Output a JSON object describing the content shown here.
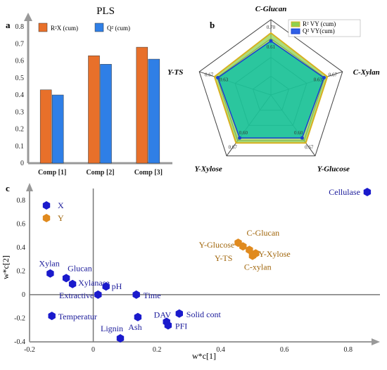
{
  "panels": {
    "a": {
      "label": "a"
    },
    "b": {
      "label": "b"
    },
    "c": {
      "label": "c"
    }
  },
  "chart_data": [
    {
      "type": "bar",
      "title": "PLS",
      "categories": [
        "Comp [1]",
        "Comp [2]",
        "Comp [3]"
      ],
      "series": [
        {
          "name": "R²X (cum)",
          "color": "#e8702a",
          "values": [
            0.43,
            0.63,
            0.68
          ]
        },
        {
          "name": "Q² (cum)",
          "color": "#2f7fe6",
          "values": [
            0.4,
            0.58,
            0.61
          ]
        }
      ],
      "ylim": [
        0,
        0.8
      ],
      "yticks": [
        "0",
        "0.1",
        "0.2",
        "0.3",
        "0.4",
        "0.5",
        "0.6",
        "0.7",
        "0.8"
      ],
      "legend": "top"
    },
    {
      "type": "radar",
      "axes": [
        "C-Glucan",
        "C-Xylan",
        "Y-Glucose",
        "Y-Xylose",
        "Y-TS"
      ],
      "rings": 4,
      "series": [
        {
          "name": "R² VY (cum)",
          "color": "#8fd14f",
          "values": [
            0.7,
            0.67,
            0.67,
            0.67,
            0.67
          ],
          "labels": [
            "0.70",
            "0.67",
            "0.67",
            "0.67",
            "0.67"
          ]
        },
        {
          "name": "Q² VY(cum)",
          "color": "#2f5fe6",
          "values": [
            0.61,
            0.63,
            0.6,
            0.6,
            0.63
          ],
          "labels": [
            "0.61",
            "0.63",
            "0.60",
            "0.60",
            "0.63"
          ]
        }
      ],
      "rmax": 0.85,
      "legend": "top-right"
    },
    {
      "type": "scatter",
      "xlabel": "w*c[1]",
      "ylabel": "w*c[2]",
      "xlim": [
        -0.2,
        0.9
      ],
      "ylim": [
        -0.4,
        0.9
      ],
      "xticks": [
        "-0.2",
        "0",
        "0.2",
        "0.4",
        "0.6",
        "0.8"
      ],
      "yticks": [
        "-0.4",
        "-0.2",
        "0",
        "0.2",
        "0.4",
        "0.6",
        "0.8"
      ],
      "legend": [
        {
          "name": "X",
          "color": "#1a1acc"
        },
        {
          "name": "Y",
          "color": "#e08a1e"
        }
      ],
      "points": [
        {
          "label": "Xylan",
          "x": -0.135,
          "y": 0.18,
          "group": "X"
        },
        {
          "label": "Glucan",
          "x": -0.085,
          "y": 0.14,
          "group": "X"
        },
        {
          "label": "Xylanase",
          "x": -0.065,
          "y": 0.09,
          "group": "X"
        },
        {
          "label": "pH",
          "x": 0.04,
          "y": 0.07,
          "group": "X"
        },
        {
          "label": "Extractive",
          "x": 0.015,
          "y": 0.0,
          "group": "X"
        },
        {
          "label": "Time",
          "x": 0.135,
          "y": 0.0,
          "group": "X"
        },
        {
          "label": "Temperatur",
          "x": -0.13,
          "y": -0.18,
          "group": "X"
        },
        {
          "label": "Ash",
          "x": 0.14,
          "y": -0.19,
          "group": "X"
        },
        {
          "label": "DAV",
          "x": 0.23,
          "y": -0.23,
          "group": "X"
        },
        {
          "label": "PFI",
          "x": 0.235,
          "y": -0.26,
          "group": "X"
        },
        {
          "label": "Solid cont",
          "x": 0.27,
          "y": -0.16,
          "group": "X"
        },
        {
          "label": "Lignin",
          "x": 0.085,
          "y": -0.37,
          "group": "X"
        },
        {
          "label": "Cellulase",
          "x": 0.86,
          "y": 0.87,
          "group": "X"
        },
        {
          "label": "C-Glucan",
          "x": 0.455,
          "y": 0.44,
          "group": "Y"
        },
        {
          "label": "Y-Glucose",
          "x": 0.47,
          "y": 0.41,
          "group": "Y"
        },
        {
          "label": "Y-TS",
          "x": 0.49,
          "y": 0.38,
          "group": "Y"
        },
        {
          "label": "Y-Xylose",
          "x": 0.51,
          "y": 0.35,
          "group": "Y"
        },
        {
          "label": "C-xylan",
          "x": 0.5,
          "y": 0.33,
          "group": "Y"
        }
      ]
    }
  ]
}
